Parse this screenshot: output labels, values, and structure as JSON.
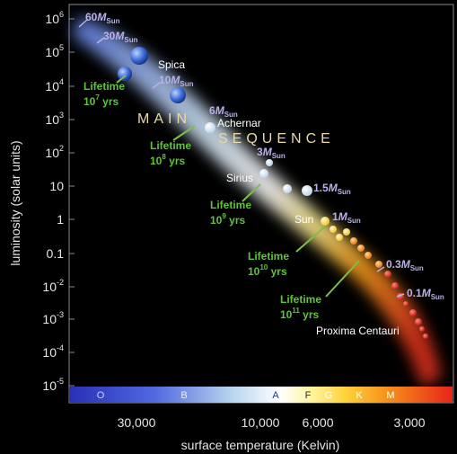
{
  "axes": {
    "ylabel": "luminosity (solar units)",
    "xlabel": "surface temperature (Kelvin)",
    "y_ticks": [
      {
        "base": "10",
        "exp": "6"
      },
      {
        "base": "10",
        "exp": "5"
      },
      {
        "base": "10",
        "exp": "4"
      },
      {
        "base": "10",
        "exp": "3"
      },
      {
        "base": "10",
        "exp": "2"
      },
      {
        "base": "10",
        "exp": ""
      },
      {
        "base": "1",
        "exp": ""
      },
      {
        "base": "0.1",
        "exp": ""
      },
      {
        "base": "10",
        "exp": "-2"
      },
      {
        "base": "10",
        "exp": "-3"
      },
      {
        "base": "10",
        "exp": "-4"
      },
      {
        "base": "10",
        "exp": "-5"
      }
    ],
    "x_ticks": [
      "30,000",
      "10,000",
      "6,000",
      "3,000"
    ]
  },
  "spectral_classes": [
    "O",
    "B",
    "A",
    "F",
    "G",
    "K",
    "M"
  ],
  "band_text": {
    "main": "MAIN",
    "sequence": "SEQUENCE"
  },
  "mass_labels": [
    {
      "value": "60",
      "unit": "M",
      "sub": "Sun"
    },
    {
      "value": "30",
      "unit": "M",
      "sub": "Sun"
    },
    {
      "value": "10",
      "unit": "M",
      "sub": "Sun"
    },
    {
      "value": "6",
      "unit": "M",
      "sub": "Sun"
    },
    {
      "value": "3",
      "unit": "M",
      "sub": "Sun"
    },
    {
      "value": "1.5",
      "unit": "M",
      "sub": "Sun"
    },
    {
      "value": "1",
      "unit": "M",
      "sub": "Sun"
    },
    {
      "value": "0.3",
      "unit": "M",
      "sub": "Sun"
    },
    {
      "value": "0.1",
      "unit": "M",
      "sub": "Sun"
    }
  ],
  "star_names": [
    "Spica",
    "Achernar",
    "Sirius",
    "Sun",
    "Proxima Centauri"
  ],
  "lifetimes": [
    {
      "label": "Lifetime",
      "base": "10",
      "exp": "7",
      "unit": "yrs"
    },
    {
      "label": "Lifetime",
      "base": "10",
      "exp": "8",
      "unit": "yrs"
    },
    {
      "label": "Lifetime",
      "base": "10",
      "exp": "9",
      "unit": "yrs"
    },
    {
      "label": "Lifetime",
      "base": "10",
      "exp": "10",
      "unit": "yrs"
    },
    {
      "label": "Lifetime",
      "base": "10",
      "exp": "11",
      "unit": "yrs"
    }
  ],
  "colors": {
    "lifetime_green": "#5fc33a",
    "mass_lilac": "#b9b2e6",
    "star_name": "#ffffff",
    "band_text": "#e8d9a8",
    "axis_text": "#e6e6e6"
  }
}
